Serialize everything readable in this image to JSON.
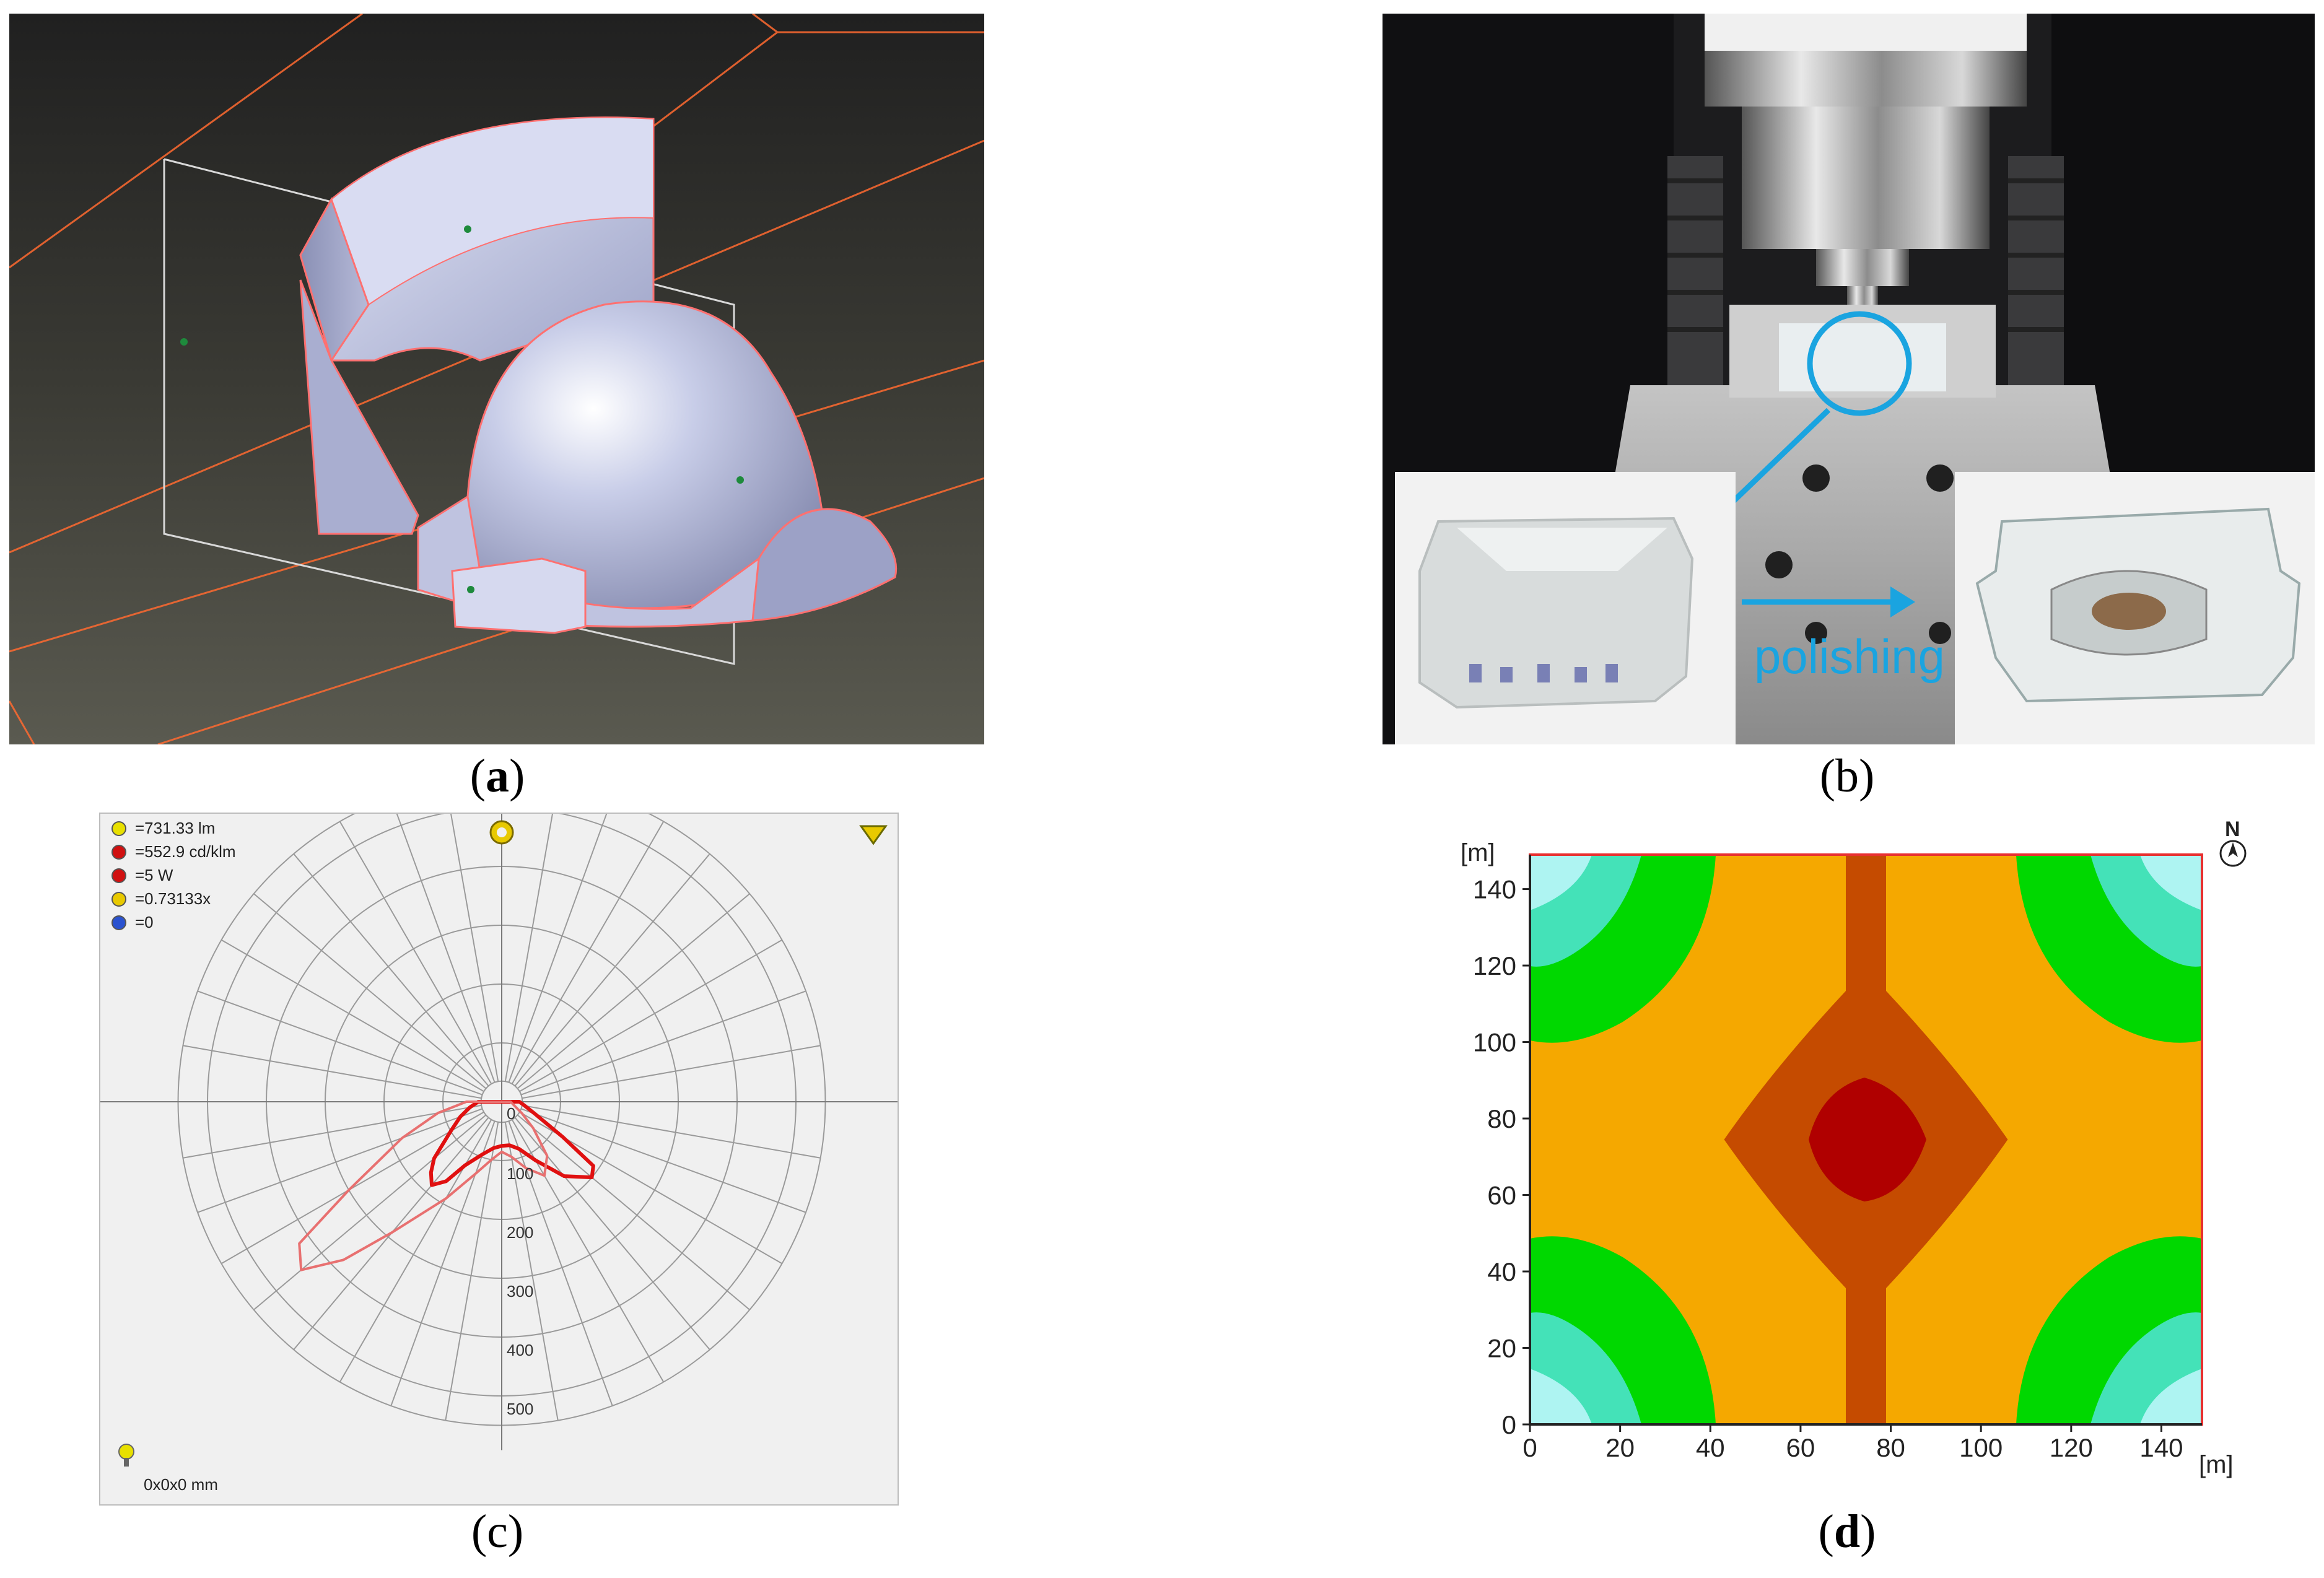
{
  "captions": {
    "a": {
      "open": "(",
      "letter": "a",
      "close": ")"
    },
    "b": {
      "open": "(",
      "letter": "b",
      "close": ")"
    },
    "c": {
      "open": "(",
      "letter": "c",
      "close": ")"
    },
    "d": {
      "open": "(",
      "letter": "d",
      "close": ")"
    }
  },
  "panel_b": {
    "annotation": "polishing"
  },
  "panel_c": {
    "legend": [
      {
        "icon": "lamp-flux-icon",
        "value": "=731.33 lm"
      },
      {
        "icon": "max-intensity-icon",
        "value": "=552.9 cd/klm"
      },
      {
        "icon": "power-icon",
        "value": "=5 W"
      },
      {
        "icon": "factor-icon",
        "value": "=0.73133x"
      },
      {
        "icon": "tilt-icon",
        "value": "=0"
      }
    ],
    "dimensions": "0x0x0 mm",
    "radial_labels": [
      "0",
      "100",
      "200",
      "300",
      "400",
      "500"
    ],
    "chart_data": {
      "type": "line",
      "subtype": "polar",
      "radial_ticks": [
        0,
        100,
        200,
        300,
        400,
        500
      ],
      "radial_max": 550,
      "angle_step_deg": 10,
      "series": [
        {
          "color": "#e01010",
          "points": [
            [
              -90,
              40
            ],
            [
              -80,
              55
            ],
            [
              -70,
              75
            ],
            [
              -60,
              100
            ],
            [
              -50,
              150
            ],
            [
              -45,
              170
            ],
            [
              -40,
              185
            ],
            [
              -35,
              165
            ],
            [
              -30,
              125
            ],
            [
              -20,
              95
            ],
            [
              -10,
              80
            ],
            [
              0,
              75
            ],
            [
              10,
              75
            ],
            [
              20,
              85
            ],
            [
              30,
              115
            ],
            [
              40,
              165
            ],
            [
              50,
              200
            ],
            [
              55,
              190
            ],
            [
              60,
              120
            ],
            [
              70,
              60
            ],
            [
              80,
              40
            ],
            [
              90,
              30
            ]
          ]
        },
        {
          "color": "#e87070",
          "points": [
            [
              -90,
              60
            ],
            [
              -80,
              110
            ],
            [
              -70,
              180
            ],
            [
              -60,
              300
            ],
            [
              -55,
              420
            ],
            [
              -50,
              445
            ],
            [
              -45,
              380
            ],
            [
              -40,
              290
            ],
            [
              -30,
              190
            ],
            [
              -20,
              130
            ],
            [
              -10,
              100
            ],
            [
              0,
              85
            ],
            [
              10,
              95
            ],
            [
              20,
              120
            ],
            [
              30,
              145
            ],
            [
              40,
              120
            ],
            [
              50,
              70
            ],
            [
              60,
              40
            ],
            [
              70,
              25
            ],
            [
              90,
              15
            ]
          ]
        }
      ]
    }
  },
  "panel_d": {
    "unit_label_y": "[m]",
    "unit_label_x": "[m]",
    "compass": "N",
    "chart_data": {
      "type": "heatmap",
      "subtype": "contour",
      "x_ticks": [
        0,
        20,
        40,
        60,
        80,
        100,
        120,
        140
      ],
      "y_ticks": [
        0,
        20,
        40,
        60,
        80,
        100,
        120,
        140
      ],
      "xlim": [
        0,
        149
      ],
      "ylim": [
        0,
        149
      ],
      "xlabel": "[m]",
      "ylabel": "[m]",
      "levels_colors": [
        "#aef4f2",
        "#44e2b8",
        "#00d800",
        "#f5a800",
        "#c54b00",
        "#b00000"
      ]
    }
  }
}
